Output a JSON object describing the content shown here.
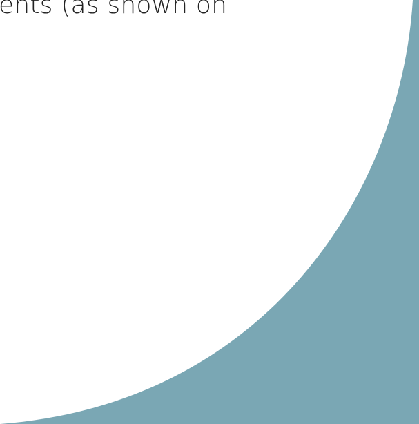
{
  "slide": {
    "top_text": "ents (as shown on"
  },
  "colors": {
    "background": "#ffffff",
    "text": "#222222",
    "accent_shape": "#7aa7b4"
  },
  "decorations": {
    "corner_shape": "teal-quarter-curve"
  }
}
